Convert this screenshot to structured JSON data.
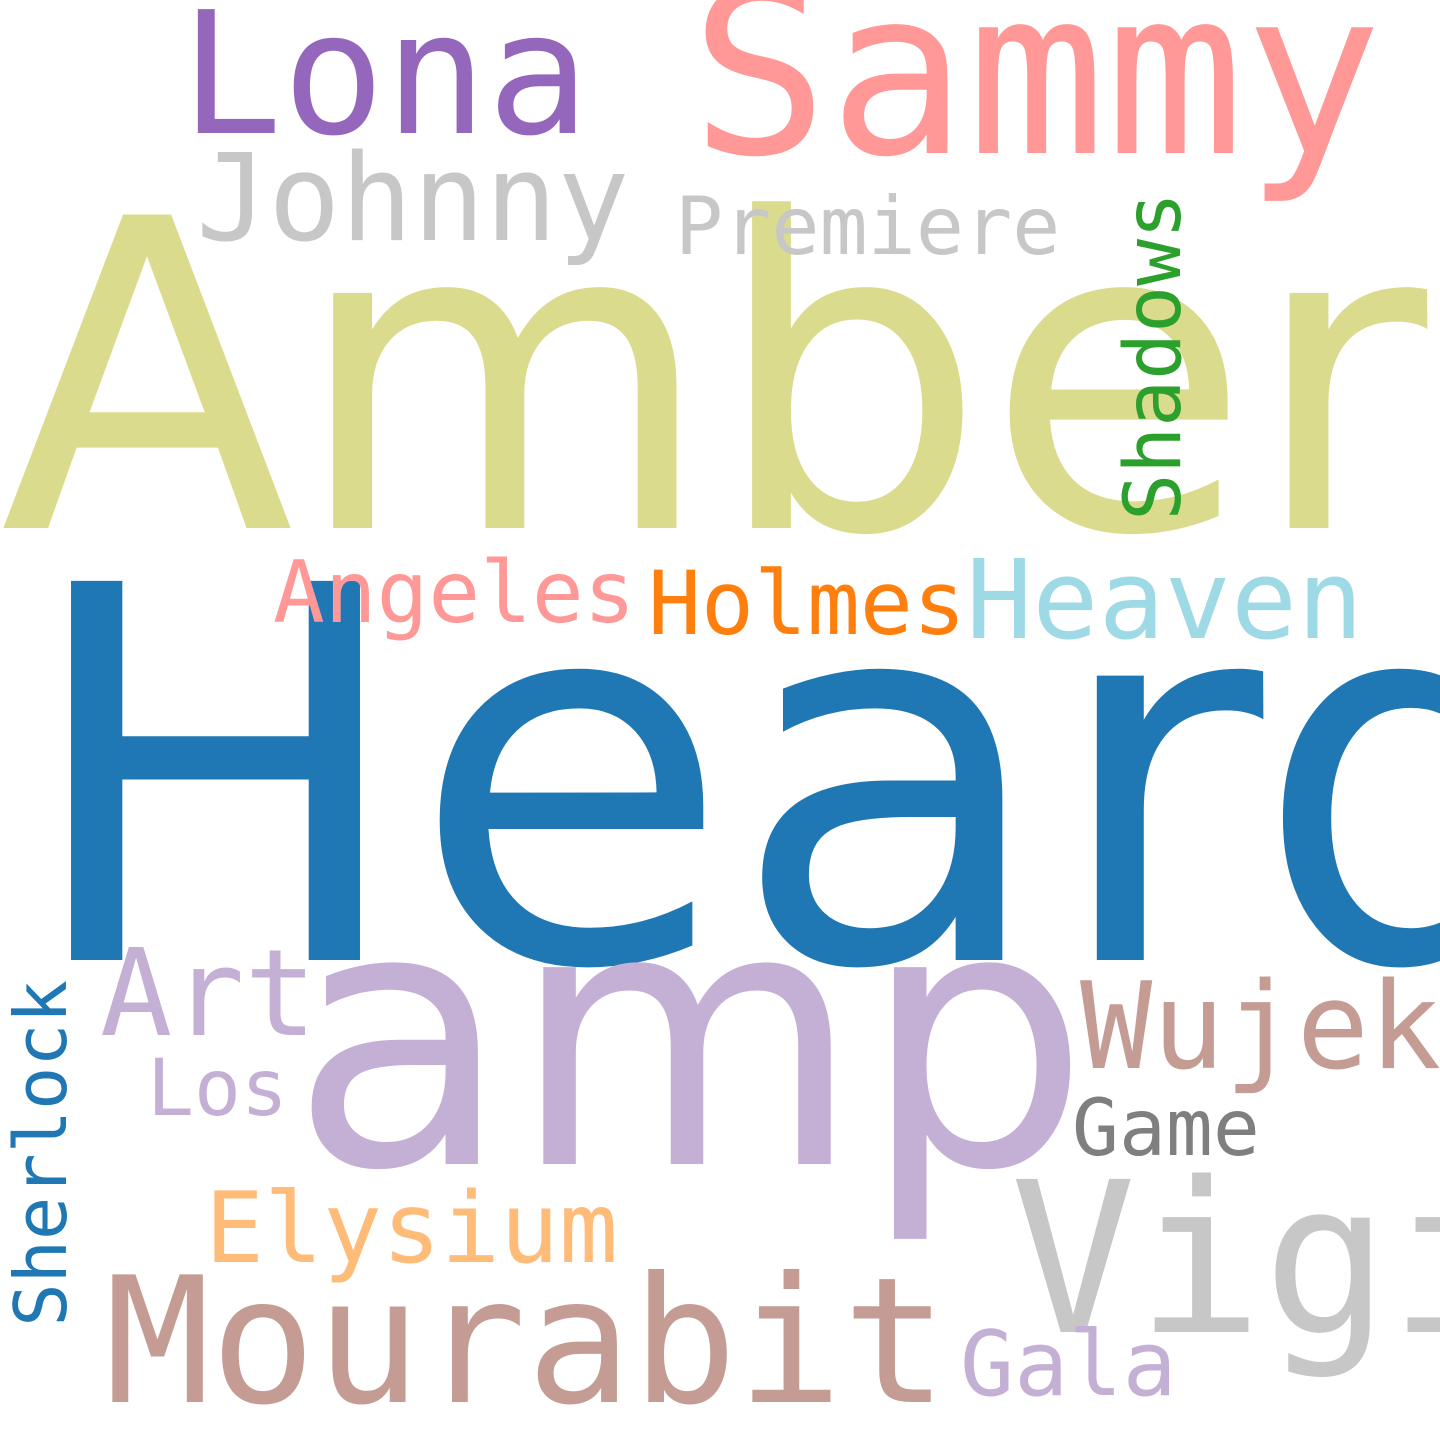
{
  "word_cloud": {
    "words": [
      {
        "text": "Heard",
        "color": "#1f77b4"
      },
      {
        "text": "Amber",
        "color": "#dbdb8d"
      },
      {
        "text": "amp",
        "color": "#c5b0d5"
      },
      {
        "text": "Sammy",
        "color": "#ff9896"
      },
      {
        "text": "Lona",
        "color": "#9467bd"
      },
      {
        "text": "Mourabit",
        "color": "#c49c94"
      },
      {
        "text": "Vigi",
        "color": "#c7c7c7"
      },
      {
        "text": "Johnny",
        "color": "#c7c7c7"
      },
      {
        "text": "Premiere",
        "color": "#c7c7c7"
      },
      {
        "text": "Shadows",
        "color": "#2ca02c"
      },
      {
        "text": "Angeles",
        "color": "#ff9896"
      },
      {
        "text": "Holmes",
        "color": "#ff7f0e"
      },
      {
        "text": "Heaven",
        "color": "#9edae5"
      },
      {
        "text": "Art",
        "color": "#c5b0d5"
      },
      {
        "text": "Wujek",
        "color": "#c49c94"
      },
      {
        "text": "Los",
        "color": "#c5b0d5"
      },
      {
        "text": "Sherlock",
        "color": "#1f77b4"
      },
      {
        "text": "Game",
        "color": "#7f7f7f"
      },
      {
        "text": "Elysium",
        "color": "#ffbb78"
      },
      {
        "text": "Gala",
        "color": "#c5b0d5"
      }
    ]
  }
}
